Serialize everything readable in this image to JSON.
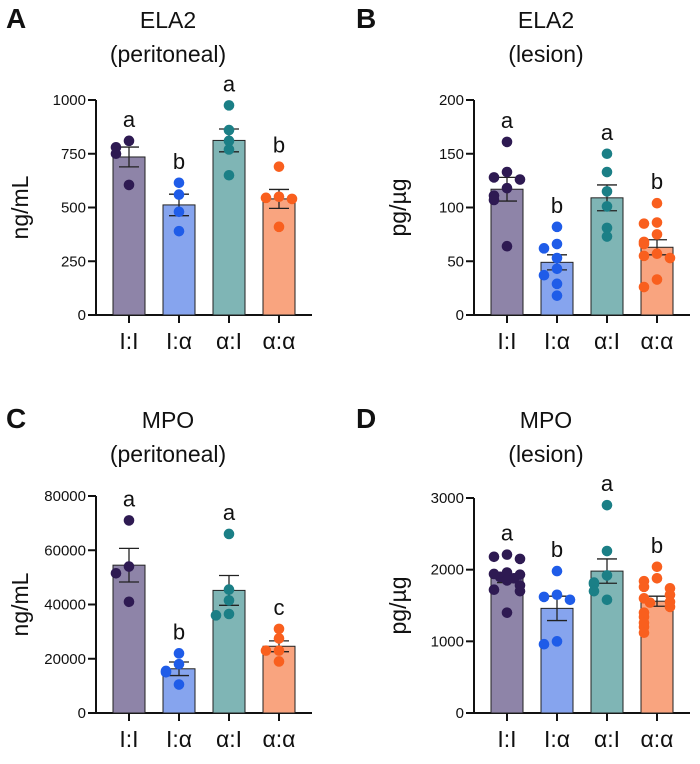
{
  "colors": {
    "I:I": {
      "fill": "#8e84a8",
      "dot": "#2e1a52"
    },
    "I:α": {
      "fill": "#86a4ee",
      "dot": "#1f5ce8"
    },
    "α:I": {
      "fill": "#7fb5b5",
      "dot": "#1b7f86"
    },
    "α:α": {
      "fill": "#f9a47f",
      "dot": "#f95f1e"
    }
  },
  "chart_data": [
    {
      "panel": "A",
      "type": "bar",
      "title": "ELA2",
      "subtitle": "(peritoneal)",
      "ylabel": "ng/mL",
      "ylim": [
        0,
        1000
      ],
      "yticks": [
        0,
        250,
        500,
        750,
        1000
      ],
      "categories": [
        "I:I",
        "I:α",
        "α:I",
        "α:α"
      ],
      "means": [
        735,
        512,
        812,
        540
      ],
      "sem": [
        46,
        50,
        53,
        44
      ],
      "letters": [
        "a",
        "b",
        "a",
        "b"
      ],
      "points": [
        [
          810,
          780,
          750,
          605
        ],
        [
          615,
          560,
          480,
          390
        ],
        [
          975,
          860,
          810,
          770,
          650
        ],
        [
          690,
          550,
          545,
          540,
          410
        ]
      ]
    },
    {
      "panel": "B",
      "type": "bar",
      "title": "ELA2",
      "subtitle": "(lesion)",
      "ylabel": "pg/µg",
      "ylim": [
        0,
        200
      ],
      "yticks": [
        0,
        50,
        100,
        150,
        200
      ],
      "categories": [
        "I:I",
        "I:α",
        "α:I",
        "α:α"
      ],
      "means": [
        117,
        49,
        109,
        63
      ],
      "sem": [
        11,
        7,
        12,
        7
      ],
      "letters": [
        "a",
        "b",
        "a",
        "b"
      ],
      "points": [
        [
          161,
          133,
          128,
          126,
          118,
          111,
          107,
          64
        ],
        [
          82,
          66,
          62,
          53,
          43,
          37,
          29,
          18
        ],
        [
          150,
          133,
          115,
          101,
          81,
          73
        ],
        [
          104,
          86,
          85,
          75,
          68,
          66,
          57,
          55,
          53,
          33,
          26
        ]
      ]
    },
    {
      "panel": "C",
      "type": "bar",
      "title": "MPO",
      "subtitle": "(peritoneal)",
      "ylabel": "ng/mL",
      "ylim": [
        0,
        80000
      ],
      "yticks": [
        0,
        20000,
        40000,
        60000,
        80000
      ],
      "categories": [
        "I:I",
        "I:α",
        "α:I",
        "α:α"
      ],
      "means": [
        54500,
        16300,
        45200,
        24600
      ],
      "sem": [
        6200,
        2500,
        5500,
        2000
      ],
      "letters": [
        "a",
        "b",
        "a",
        "c"
      ],
      "points": [
        [
          71000,
          54000,
          51500,
          41000
        ],
        [
          22000,
          18000,
          15500,
          15000,
          10500
        ],
        [
          66000,
          45500,
          41500,
          36500,
          36000
        ],
        [
          31000,
          27500,
          23000,
          23000,
          19000
        ]
      ]
    },
    {
      "panel": "D",
      "type": "bar",
      "title": "MPO",
      "subtitle": "(lesion)",
      "ylabel": "pg/µg",
      "ylim": [
        0,
        3000
      ],
      "yticks": [
        0,
        1000,
        2000,
        3000
      ],
      "categories": [
        "I:I",
        "I:α",
        "α:I",
        "α:α"
      ],
      "means": [
        1880,
        1460,
        1980,
        1560
      ],
      "sem": [
        60,
        170,
        170,
        70
      ],
      "letters": [
        "a",
        "b",
        "a",
        "b"
      ],
      "points": [
        [
          2210,
          2180,
          2150,
          1960,
          1940,
          1930,
          1900,
          1880,
          1850,
          1780,
          1720,
          1700,
          1400
        ],
        [
          1980,
          1650,
          1620,
          1580,
          1000,
          960
        ],
        [
          2900,
          2260,
          1920,
          1820,
          1800,
          1700,
          1580
        ],
        [
          2040,
          1880,
          1840,
          1760,
          1740,
          1650,
          1600,
          1550,
          1540,
          1480,
          1400,
          1340,
          1260,
          1200,
          1120
        ]
      ]
    }
  ]
}
